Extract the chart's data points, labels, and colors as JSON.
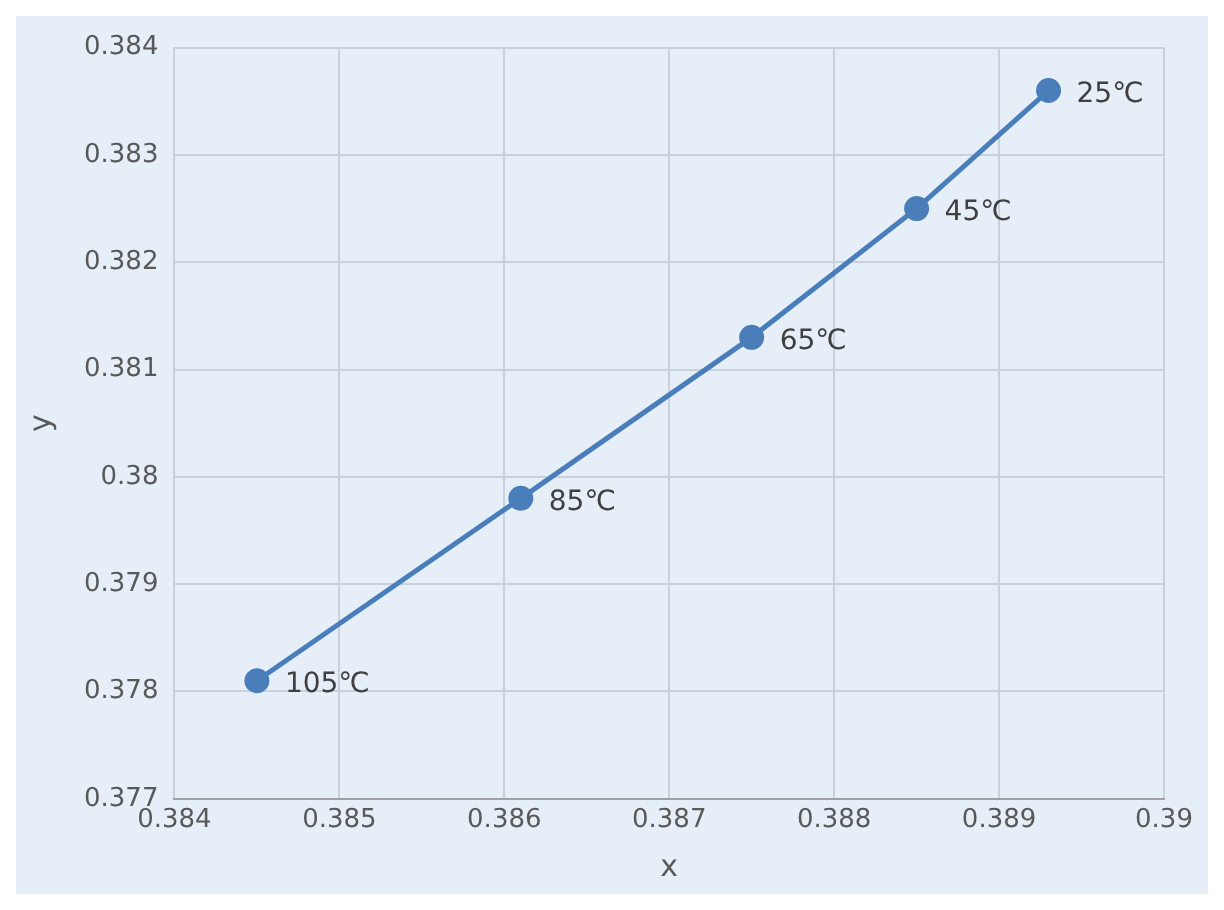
{
  "chart_data": {
    "type": "line",
    "xlabel": "x",
    "ylabel": "y",
    "series": [
      {
        "color": "#4a7ebb",
        "x": [
          0.3845,
          0.3861,
          0.3875,
          0.3885,
          0.3893
        ],
        "values": [
          0.3781,
          0.3798,
          0.3813,
          0.3825,
          0.3836
        ]
      }
    ],
    "xlim": [
      0.384,
      0.39
    ],
    "xticks": [
      0.384,
      0.385,
      0.386,
      0.387,
      0.388,
      0.389,
      0.39
    ],
    "ylim": [
      0.377,
      0.384
    ],
    "yticks": [
      0.377,
      0.378,
      0.379,
      0.38,
      0.381,
      0.382,
      0.383,
      0.384
    ],
    "annotations": [
      {
        "text": "105℃",
        "x": 0.3845,
        "y": 0.3781
      },
      {
        "text": "85℃",
        "x": 0.3861,
        "y": 0.3798
      },
      {
        "text": "65℃",
        "x": 0.3875,
        "y": 0.3813
      },
      {
        "text": "45℃",
        "x": 0.3885,
        "y": 0.3825
      },
      {
        "text": "25℃",
        "x": 0.3893,
        "y": 0.3836
      }
    ],
    "grid": true,
    "marker": "circle",
    "line_style": "solid",
    "legend": false
  }
}
